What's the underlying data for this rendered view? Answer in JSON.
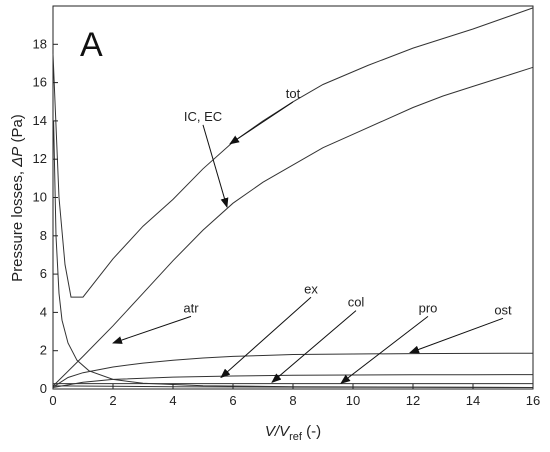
{
  "chart_data": {
    "type": "line",
    "panel_label": "A",
    "xlabel": {
      "main": "V/V",
      "sub": "ref",
      "unit": " (-)"
    },
    "ylabel": {
      "main": "Pressure losses, ",
      "sym": "ΔP",
      "unit": " (Pa)"
    },
    "xlim": [
      0,
      16
    ],
    "ylim": [
      0,
      20
    ],
    "xticks": [
      0,
      2,
      4,
      6,
      8,
      10,
      12,
      14,
      16
    ],
    "yticks": [
      0,
      2,
      4,
      6,
      8,
      10,
      12,
      14,
      16,
      18
    ],
    "grid": false,
    "series": [
      {
        "x": [
          0,
          0.2,
          0.4,
          0.6,
          1.0,
          1.5,
          2.0,
          3.0,
          4.0,
          5.0,
          6.0,
          7.0,
          8.0,
          9.0,
          10.5,
          12.0,
          14.0,
          16.0
        ],
        "y": [
          17.5,
          10.0,
          6.5,
          4.8,
          4.8,
          5.8,
          6.8,
          8.5,
          9.9,
          11.5,
          12.9,
          14.0,
          15.0,
          15.9,
          16.9,
          17.8,
          18.8,
          19.9
        ]
      },
      {
        "x": [
          0,
          1,
          2,
          3,
          4,
          5,
          6,
          7,
          8,
          9,
          10,
          11,
          12,
          13,
          14,
          15,
          16
        ],
        "y": [
          0.15,
          1.7,
          3.3,
          5.0,
          6.7,
          8.3,
          9.7,
          10.8,
          11.7,
          12.6,
          13.3,
          14.0,
          14.7,
          15.3,
          15.8,
          16.3,
          16.8
        ]
      },
      {
        "x": [
          0.02,
          0.1,
          0.2,
          0.3,
          0.5,
          0.8,
          1.2,
          2,
          3,
          5,
          8,
          12,
          16
        ],
        "y": [
          14.0,
          8.0,
          5.0,
          3.6,
          2.4,
          1.5,
          0.95,
          0.5,
          0.3,
          0.17,
          0.12,
          0.1,
          0.08
        ]
      },
      {
        "x": [
          0,
          0.5,
          1,
          2,
          3,
          4,
          5,
          6,
          7,
          8,
          10,
          12,
          14,
          16
        ],
        "y": [
          0.1,
          0.6,
          0.85,
          1.15,
          1.35,
          1.5,
          1.62,
          1.7,
          1.75,
          1.8,
          1.83,
          1.85,
          1.86,
          1.87
        ]
      },
      {
        "x": [
          0,
          1,
          2,
          4,
          6,
          8,
          10,
          12,
          14,
          16
        ],
        "y": [
          0.08,
          0.35,
          0.5,
          0.62,
          0.68,
          0.72,
          0.73,
          0.74,
          0.74,
          0.75
        ]
      },
      {
        "x": [
          0,
          4,
          8,
          12,
          16
        ],
        "y": [
          0.28,
          0.28,
          0.28,
          0.28,
          0.28
        ]
      },
      {
        "x": [
          0,
          4,
          8,
          12,
          16
        ],
        "y": [
          0.16,
          0.12,
          0.1,
          0.09,
          0.08
        ]
      }
    ],
    "annotations": [
      {
        "text": "tot",
        "text_xy": [
          8.0,
          15.2
        ],
        "arrow_to": [
          5.9,
          12.8
        ]
      },
      {
        "text": "IC, EC",
        "text_xy": [
          5.0,
          14.0
        ],
        "arrow_to": [
          5.8,
          9.5
        ]
      },
      {
        "text": "atr",
        "text_xy": [
          4.6,
          4.0
        ],
        "arrow_to": [
          2.0,
          2.4
        ]
      },
      {
        "text": "ex",
        "text_xy": [
          8.6,
          5.0
        ],
        "arrow_to": [
          5.6,
          0.6
        ]
      },
      {
        "text": "col",
        "text_xy": [
          10.1,
          4.3
        ],
        "arrow_to": [
          7.3,
          0.35
        ]
      },
      {
        "text": "pro",
        "text_xy": [
          12.5,
          4.0
        ],
        "arrow_to": [
          9.6,
          0.3
        ]
      },
      {
        "text": "ost",
        "text_xy": [
          15.0,
          3.9
        ],
        "arrow_to": [
          11.9,
          1.9
        ]
      }
    ]
  }
}
